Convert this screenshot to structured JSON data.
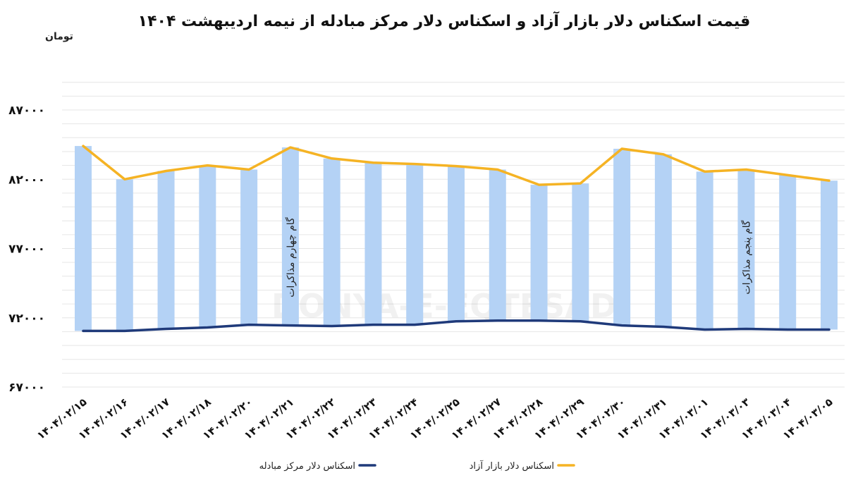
{
  "chart_data": {
    "type": "bar+line",
    "title": "قیمت اسکناس دلار بازار آزاد و اسکناس دلار مرکز مبادله از نیمه اردیبهشت ۱۴۰۴",
    "ylabel": "تومان",
    "ylim": [
      67000,
      87000
    ],
    "yticks": [
      67000,
      72000,
      77000,
      82000,
      87000
    ],
    "ytick_labels": [
      "۶۷۰۰۰",
      "۷۲۰۰۰",
      "۷۷۰۰۰",
      "۸۲۰۰۰",
      "۸۷۰۰۰"
    ],
    "categories": [
      "۱۴۰۴/۰۲/۱۵",
      "۱۴۰۴/۰۲/۱۶",
      "۱۴۰۴/۰۲/۱۷",
      "۱۴۰۴/۰۲/۱۸",
      "۱۴۰۴/۰۲/۲۰",
      "۱۴۰۴/۰۲/۲۱",
      "۱۴۰۴/۰۲/۲۲",
      "۱۴۰۴/۰۲/۲۳",
      "۱۴۰۴/۰۲/۲۴",
      "۱۴۰۴/۰۲/۲۵",
      "۱۴۰۴/۰۲/۲۷",
      "۱۴۰۴/۰۲/۲۸",
      "۱۴۰۴/۰۲/۲۹",
      "۱۴۰۴/۰۲/۳۰",
      "۱۴۰۴/۰۲/۳۱",
      "۱۴۰۴/۰۳/۰۱",
      "۱۴۰۴/۰۳/۰۳",
      "۱۴۰۴/۰۳/۰۴",
      "۱۴۰۴/۰۳/۰۵"
    ],
    "series": [
      {
        "name": "اسکناس دلار مرکز مبادله",
        "type": "line",
        "color": "#1f3a7a",
        "values": [
          71050,
          71050,
          71200,
          71300,
          71500,
          71450,
          71400,
          71500,
          71500,
          71750,
          71800,
          71800,
          71750,
          71450,
          71350,
          71150,
          71200,
          71150,
          71150
        ]
      },
      {
        "name": "اسکناس دلار بازار آزاد",
        "type": "line",
        "color": "#f5b324",
        "values": [
          84400,
          82000,
          82600,
          83000,
          82700,
          84300,
          83500,
          83200,
          83100,
          82950,
          82700,
          81600,
          81700,
          84200,
          83800,
          82550,
          82700,
          82300,
          81900
        ]
      }
    ],
    "bar_color": "#b4d2f5",
    "annotations": [
      {
        "text": "گام چهارم مذاکرات",
        "category": "۱۴۰۴/۰۲/۲۱"
      },
      {
        "text": "گام پنجم مذاکرات",
        "category": "۱۴۰۴/۰۳/۰۳"
      }
    ],
    "watermark": "DONYA-E-EQTESAD",
    "legend_position": "bottom",
    "grid": true
  }
}
